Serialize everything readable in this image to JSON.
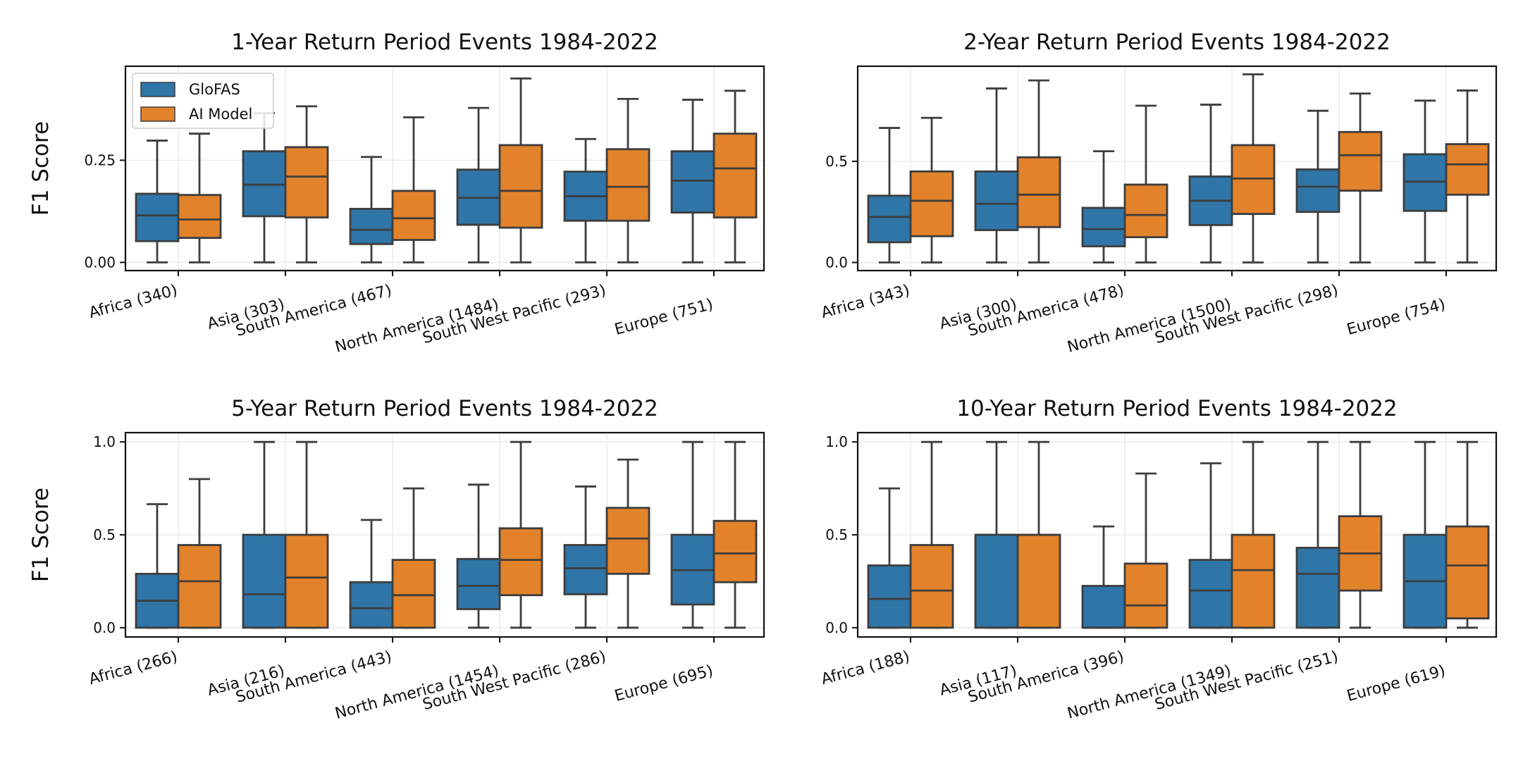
{
  "legend": {
    "items": [
      {
        "label": "GloFAS",
        "color": "#2f75a8"
      },
      {
        "label": "AI Model",
        "color": "#e2822b"
      }
    ],
    "placement": "upper-left of first panel"
  },
  "chart_data": [
    {
      "type": "box",
      "title": "1-Year Return Period Events 1984-2022",
      "ylabel": "F1 Score",
      "ylim": [
        -0.02,
        0.48
      ],
      "yticks": [
        0.0,
        0.25
      ],
      "ytick_labels": [
        "0.00",
        "0.25"
      ],
      "grid": true,
      "categories": [
        "Africa (340)",
        "Asia (303)",
        "South America (467)",
        "North America (1484)",
        "South West Pacific (293)",
        "Europe (751)"
      ],
      "series": [
        {
          "name": "GloFAS",
          "color": "#2f75a8",
          "boxes": [
            {
              "whislo": 0.0,
              "q1": 0.052,
              "med": 0.115,
              "q3": 0.168,
              "whishi": 0.298
            },
            {
              "whislo": 0.0,
              "q1": 0.113,
              "med": 0.19,
              "q3": 0.272,
              "whishi": 0.365
            },
            {
              "whislo": 0.0,
              "q1": 0.045,
              "med": 0.08,
              "q3": 0.131,
              "whishi": 0.258
            },
            {
              "whislo": 0.0,
              "q1": 0.092,
              "med": 0.158,
              "q3": 0.227,
              "whishi": 0.378
            },
            {
              "whislo": 0.0,
              "q1": 0.102,
              "med": 0.162,
              "q3": 0.222,
              "whishi": 0.302
            },
            {
              "whislo": 0.0,
              "q1": 0.122,
              "med": 0.2,
              "q3": 0.272,
              "whishi": 0.398
            }
          ]
        },
        {
          "name": "AI Model",
          "color": "#e2822b",
          "boxes": [
            {
              "whislo": 0.0,
              "q1": 0.06,
              "med": 0.105,
              "q3": 0.165,
              "whishi": 0.315
            },
            {
              "whislo": 0.0,
              "q1": 0.11,
              "med": 0.21,
              "q3": 0.282,
              "whishi": 0.382
            },
            {
              "whislo": 0.0,
              "q1": 0.055,
              "med": 0.108,
              "q3": 0.175,
              "whishi": 0.355
            },
            {
              "whislo": 0.0,
              "q1": 0.085,
              "med": 0.175,
              "q3": 0.287,
              "whishi": 0.45
            },
            {
              "whislo": 0.0,
              "q1": 0.102,
              "med": 0.185,
              "q3": 0.277,
              "whishi": 0.4
            },
            {
              "whislo": 0.0,
              "q1": 0.11,
              "med": 0.23,
              "q3": 0.315,
              "whishi": 0.42
            }
          ]
        }
      ]
    },
    {
      "type": "box",
      "title": "2-Year Return Period Events 1984-2022",
      "ylabel": "",
      "ylim": [
        -0.04,
        0.97
      ],
      "yticks": [
        0.0,
        0.5
      ],
      "ytick_labels": [
        "0.0",
        "0.5"
      ],
      "grid": true,
      "categories": [
        "Africa (343)",
        "Asia (300)",
        "South America (478)",
        "North America (1500)",
        "South West Pacific (298)",
        "Europe (754)"
      ],
      "series": [
        {
          "name": "GloFAS",
          "color": "#2f75a8",
          "boxes": [
            {
              "whislo": 0.0,
              "q1": 0.1,
              "med": 0.225,
              "q3": 0.33,
              "whishi": 0.665
            },
            {
              "whislo": 0.0,
              "q1": 0.16,
              "med": 0.29,
              "q3": 0.45,
              "whishi": 0.86
            },
            {
              "whislo": 0.0,
              "q1": 0.08,
              "med": 0.165,
              "q3": 0.27,
              "whishi": 0.55
            },
            {
              "whislo": 0.0,
              "q1": 0.185,
              "med": 0.305,
              "q3": 0.425,
              "whishi": 0.78
            },
            {
              "whislo": 0.0,
              "q1": 0.25,
              "med": 0.375,
              "q3": 0.46,
              "whishi": 0.75
            },
            {
              "whislo": 0.0,
              "q1": 0.255,
              "med": 0.4,
              "q3": 0.535,
              "whishi": 0.8
            }
          ]
        },
        {
          "name": "AI Model",
          "color": "#e2822b",
          "boxes": [
            {
              "whislo": 0.0,
              "q1": 0.13,
              "med": 0.305,
              "q3": 0.45,
              "whishi": 0.715
            },
            {
              "whislo": 0.0,
              "q1": 0.175,
              "med": 0.335,
              "q3": 0.52,
              "whishi": 0.9
            },
            {
              "whislo": 0.0,
              "q1": 0.125,
              "med": 0.235,
              "q3": 0.385,
              "whishi": 0.775
            },
            {
              "whislo": 0.0,
              "q1": 0.24,
              "med": 0.415,
              "q3": 0.58,
              "whishi": 0.93
            },
            {
              "whislo": 0.0,
              "q1": 0.355,
              "med": 0.53,
              "q3": 0.645,
              "whishi": 0.835
            },
            {
              "whislo": 0.0,
              "q1": 0.335,
              "med": 0.485,
              "q3": 0.585,
              "whishi": 0.85
            }
          ]
        }
      ]
    },
    {
      "type": "box",
      "title": "5-Year Return Period Events 1984-2022",
      "ylabel": "F1 Score",
      "ylim": [
        -0.05,
        1.05
      ],
      "yticks": [
        0.0,
        0.5,
        1.0
      ],
      "ytick_labels": [
        "0.0",
        "0.5",
        "1.0"
      ],
      "grid": true,
      "categories": [
        "Africa (266)",
        "Asia (216)",
        "South America (443)",
        "North America (1454)",
        "South West Pacific (286)",
        "Europe (695)"
      ],
      "series": [
        {
          "name": "GloFAS",
          "color": "#2f75a8",
          "boxes": [
            {
              "whislo": 0.0,
              "q1": 0.0,
              "med": 0.145,
              "q3": 0.29,
              "whishi": 0.665
            },
            {
              "whislo": 0.0,
              "q1": 0.0,
              "med": 0.18,
              "q3": 0.5,
              "whishi": 1.0
            },
            {
              "whislo": 0.0,
              "q1": 0.0,
              "med": 0.105,
              "q3": 0.245,
              "whishi": 0.58
            },
            {
              "whislo": 0.0,
              "q1": 0.1,
              "med": 0.225,
              "q3": 0.37,
              "whishi": 0.77
            },
            {
              "whislo": 0.0,
              "q1": 0.18,
              "med": 0.32,
              "q3": 0.445,
              "whishi": 0.76
            },
            {
              "whislo": 0.0,
              "q1": 0.125,
              "med": 0.31,
              "q3": 0.5,
              "whishi": 1.0
            }
          ]
        },
        {
          "name": "AI Model",
          "color": "#e2822b",
          "boxes": [
            {
              "whislo": 0.0,
              "q1": 0.0,
              "med": 0.25,
              "q3": 0.445,
              "whishi": 0.8
            },
            {
              "whislo": 0.0,
              "q1": 0.0,
              "med": 0.27,
              "q3": 0.5,
              "whishi": 1.0
            },
            {
              "whislo": 0.0,
              "q1": 0.0,
              "med": 0.175,
              "q3": 0.365,
              "whishi": 0.75
            },
            {
              "whislo": 0.0,
              "q1": 0.175,
              "med": 0.365,
              "q3": 0.535,
              "whishi": 1.0
            },
            {
              "whislo": 0.0,
              "q1": 0.29,
              "med": 0.48,
              "q3": 0.645,
              "whishi": 0.905
            },
            {
              "whislo": 0.0,
              "q1": 0.245,
              "med": 0.4,
              "q3": 0.575,
              "whishi": 1.0
            }
          ]
        }
      ]
    },
    {
      "type": "box",
      "title": "10-Year Return Period Events 1984-2022",
      "ylabel": "",
      "ylim": [
        -0.05,
        1.05
      ],
      "yticks": [
        0.0,
        0.5,
        1.0
      ],
      "ytick_labels": [
        "0.0",
        "0.5",
        "1.0"
      ],
      "grid": true,
      "categories": [
        "Africa (188)",
        "Asia (117)",
        "South America (396)",
        "North America (1349)",
        "South West Pacific (251)",
        "Europe (619)"
      ],
      "series": [
        {
          "name": "GloFAS",
          "color": "#2f75a8",
          "boxes": [
            {
              "whislo": 0.0,
              "q1": 0.0,
              "med": 0.155,
              "q3": 0.335,
              "whishi": 0.75
            },
            {
              "whislo": 0.0,
              "q1": 0.0,
              "med": 0.5,
              "q3": 0.5,
              "whishi": 1.0
            },
            {
              "whislo": 0.0,
              "q1": 0.0,
              "med": 0.0,
              "q3": 0.225,
              "whishi": 0.545
            },
            {
              "whislo": 0.0,
              "q1": 0.0,
              "med": 0.2,
              "q3": 0.365,
              "whishi": 0.885
            },
            {
              "whislo": 0.0,
              "q1": 0.0,
              "med": 0.29,
              "q3": 0.43,
              "whishi": 1.0
            },
            {
              "whislo": 0.0,
              "q1": 0.0,
              "med": 0.25,
              "q3": 0.5,
              "whishi": 1.0
            }
          ]
        },
        {
          "name": "AI Model",
          "color": "#e2822b",
          "boxes": [
            {
              "whislo": 0.0,
              "q1": 0.0,
              "med": 0.2,
              "q3": 0.445,
              "whishi": 1.0
            },
            {
              "whislo": 0.0,
              "q1": 0.0,
              "med": 0.5,
              "q3": 0.5,
              "whishi": 1.0
            },
            {
              "whislo": 0.0,
              "q1": 0.0,
              "med": 0.12,
              "q3": 0.345,
              "whishi": 0.83
            },
            {
              "whislo": 0.0,
              "q1": 0.0,
              "med": 0.31,
              "q3": 0.5,
              "whishi": 1.0
            },
            {
              "whislo": 0.0,
              "q1": 0.2,
              "med": 0.4,
              "q3": 0.6,
              "whishi": 1.0
            },
            {
              "whislo": 0.0,
              "q1": 0.05,
              "med": 0.335,
              "q3": 0.545,
              "whishi": 1.0
            }
          ]
        }
      ]
    }
  ]
}
